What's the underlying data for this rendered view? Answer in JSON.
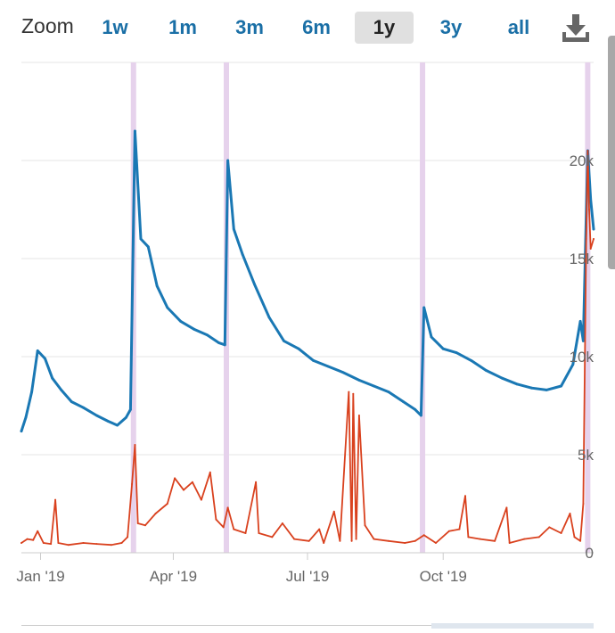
{
  "toolbar": {
    "zoom_label": "Zoom",
    "buttons": [
      "1w",
      "1m",
      "3m",
      "6m",
      "1y",
      "3y",
      "all"
    ],
    "active": "1y",
    "download_icon": "download-icon"
  },
  "colors": {
    "series_blue": "#1a78b4",
    "series_red": "#d9411e",
    "band": "#e6d2ec",
    "grid": "#e6e6e6",
    "active_button_bg": "#e0e0e0",
    "button_text": "#1a6fa6"
  },
  "chart_data": {
    "type": "line",
    "title": "",
    "xlabel": "",
    "ylabel": "",
    "xlim": [
      "2018-12-19",
      "2020-01-11"
    ],
    "ylim": [
      0,
      25000
    ],
    "x_ticks": [
      {
        "date": "2019-01-01",
        "label": "Jan '19"
      },
      {
        "date": "2019-04-01",
        "label": "Apr '19"
      },
      {
        "date": "2019-07-01",
        "label": "Jul '19"
      },
      {
        "date": "2019-10-01",
        "label": "Oct '19"
      }
    ],
    "y_ticks": [
      {
        "value": 0,
        "label": "0"
      },
      {
        "value": 5000,
        "label": "5k"
      },
      {
        "value": 10000,
        "label": "10k"
      },
      {
        "value": 15000,
        "label": "15k"
      },
      {
        "value": 20000,
        "label": "20k"
      }
    ],
    "grid": true,
    "highlight_bands": [
      "2019-03-05",
      "2019-05-07",
      "2019-09-17",
      "2020-01-07"
    ],
    "series": [
      {
        "color": "#1a78b4",
        "points": [
          [
            "2018-12-19",
            6200
          ],
          [
            "2018-12-22",
            6900
          ],
          [
            "2018-12-26",
            8200
          ],
          [
            "2018-12-30",
            10300
          ],
          [
            "2019-01-04",
            9900
          ],
          [
            "2019-01-09",
            8900
          ],
          [
            "2019-01-15",
            8300
          ],
          [
            "2019-01-22",
            7700
          ],
          [
            "2019-01-30",
            7400
          ],
          [
            "2019-02-08",
            7000
          ],
          [
            "2019-02-16",
            6700
          ],
          [
            "2019-02-22",
            6500
          ],
          [
            "2019-02-28",
            6900
          ],
          [
            "2019-03-03",
            7300
          ],
          [
            "2019-03-06",
            21500
          ],
          [
            "2019-03-10",
            16000
          ],
          [
            "2019-03-15",
            15600
          ],
          [
            "2019-03-21",
            13600
          ],
          [
            "2019-03-28",
            12500
          ],
          [
            "2019-04-06",
            11800
          ],
          [
            "2019-04-15",
            11400
          ],
          [
            "2019-04-24",
            11100
          ],
          [
            "2019-05-02",
            10700
          ],
          [
            "2019-05-06",
            10600
          ],
          [
            "2019-05-08",
            20000
          ],
          [
            "2019-05-12",
            16500
          ],
          [
            "2019-05-18",
            15200
          ],
          [
            "2019-05-26",
            13700
          ],
          [
            "2019-06-05",
            12000
          ],
          [
            "2019-06-15",
            10800
          ],
          [
            "2019-06-25",
            10400
          ],
          [
            "2019-07-05",
            9800
          ],
          [
            "2019-07-15",
            9500
          ],
          [
            "2019-07-25",
            9200
          ],
          [
            "2019-08-05",
            8800
          ],
          [
            "2019-08-15",
            8500
          ],
          [
            "2019-08-25",
            8200
          ],
          [
            "2019-09-04",
            7700
          ],
          [
            "2019-09-12",
            7300
          ],
          [
            "2019-09-16",
            7000
          ],
          [
            "2019-09-18",
            12500
          ],
          [
            "2019-09-23",
            11000
          ],
          [
            "2019-10-01",
            10400
          ],
          [
            "2019-10-10",
            10200
          ],
          [
            "2019-10-20",
            9800
          ],
          [
            "2019-10-30",
            9300
          ],
          [
            "2019-11-10",
            8900
          ],
          [
            "2019-11-20",
            8600
          ],
          [
            "2019-11-30",
            8400
          ],
          [
            "2019-12-10",
            8300
          ],
          [
            "2019-12-20",
            8500
          ],
          [
            "2019-12-28",
            9600
          ],
          [
            "2020-01-02",
            11800
          ],
          [
            "2020-01-04",
            10800
          ],
          [
            "2020-01-07",
            20500
          ],
          [
            "2020-01-09",
            18000
          ],
          [
            "2020-01-11",
            16500
          ]
        ]
      },
      {
        "color": "#d9411e",
        "points": [
          [
            "2018-12-19",
            500
          ],
          [
            "2018-12-23",
            700
          ],
          [
            "2018-12-27",
            650
          ],
          [
            "2018-12-30",
            1100
          ],
          [
            "2019-01-03",
            500
          ],
          [
            "2019-01-08",
            450
          ],
          [
            "2019-01-11",
            2700
          ],
          [
            "2019-01-13",
            500
          ],
          [
            "2019-01-20",
            400
          ],
          [
            "2019-01-30",
            500
          ],
          [
            "2019-02-08",
            450
          ],
          [
            "2019-02-18",
            400
          ],
          [
            "2019-02-25",
            500
          ],
          [
            "2019-03-01",
            800
          ],
          [
            "2019-03-04",
            3500
          ],
          [
            "2019-03-06",
            5500
          ],
          [
            "2019-03-08",
            1500
          ],
          [
            "2019-03-13",
            1400
          ],
          [
            "2019-03-20",
            2000
          ],
          [
            "2019-03-28",
            2500
          ],
          [
            "2019-04-02",
            3800
          ],
          [
            "2019-04-08",
            3200
          ],
          [
            "2019-04-14",
            3600
          ],
          [
            "2019-04-20",
            2700
          ],
          [
            "2019-04-26",
            4100
          ],
          [
            "2019-04-30",
            1700
          ],
          [
            "2019-05-05",
            1300
          ],
          [
            "2019-05-08",
            2300
          ],
          [
            "2019-05-12",
            1200
          ],
          [
            "2019-05-20",
            1000
          ],
          [
            "2019-05-27",
            3600
          ],
          [
            "2019-05-29",
            1000
          ],
          [
            "2019-06-07",
            800
          ],
          [
            "2019-06-14",
            1500
          ],
          [
            "2019-06-22",
            700
          ],
          [
            "2019-07-02",
            600
          ],
          [
            "2019-07-09",
            1200
          ],
          [
            "2019-07-12",
            500
          ],
          [
            "2019-07-19",
            2100
          ],
          [
            "2019-07-23",
            600
          ],
          [
            "2019-07-29",
            8200
          ],
          [
            "2019-07-31",
            600
          ],
          [
            "2019-08-01",
            8100
          ],
          [
            "2019-08-03",
            700
          ],
          [
            "2019-08-05",
            7000
          ],
          [
            "2019-08-09",
            1400
          ],
          [
            "2019-08-15",
            700
          ],
          [
            "2019-08-25",
            600
          ],
          [
            "2019-09-05",
            500
          ],
          [
            "2019-09-12",
            600
          ],
          [
            "2019-09-18",
            900
          ],
          [
            "2019-09-26",
            500
          ],
          [
            "2019-10-05",
            1100
          ],
          [
            "2019-10-12",
            1200
          ],
          [
            "2019-10-16",
            2900
          ],
          [
            "2019-10-18",
            800
          ],
          [
            "2019-10-26",
            700
          ],
          [
            "2019-11-05",
            600
          ],
          [
            "2019-11-13",
            2300
          ],
          [
            "2019-11-15",
            500
          ],
          [
            "2019-11-25",
            700
          ],
          [
            "2019-12-05",
            800
          ],
          [
            "2019-12-12",
            1300
          ],
          [
            "2019-12-20",
            1000
          ],
          [
            "2019-12-26",
            2000
          ],
          [
            "2019-12-29",
            800
          ],
          [
            "2020-01-02",
            600
          ],
          [
            "2020-01-04",
            2500
          ],
          [
            "2020-01-06",
            16000
          ],
          [
            "2020-01-07",
            20500
          ],
          [
            "2020-01-08",
            17500
          ],
          [
            "2020-01-09",
            15500
          ],
          [
            "2020-01-11",
            16000
          ]
        ]
      }
    ]
  }
}
